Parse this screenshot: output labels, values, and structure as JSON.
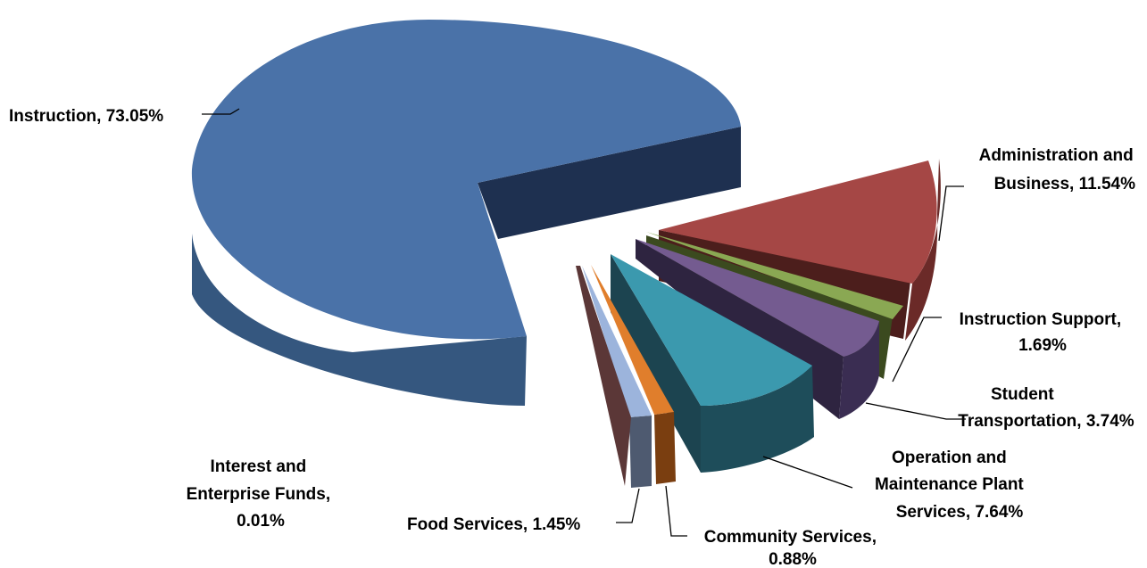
{
  "chart_data": {
    "type": "pie",
    "style": "3d-exploded",
    "unit": "%",
    "slices": [
      {
        "name": "Instruction",
        "value": 73.05,
        "color": "#4A72A8",
        "label": [
          "Instruction, 73.05%"
        ]
      },
      {
        "name": "Administration and Business",
        "value": 11.54,
        "color": "#A54745",
        "label": [
          "Administration and",
          "Business, 11.54%"
        ]
      },
      {
        "name": "Instruction Support",
        "value": 1.69,
        "color": "#8AA853",
        "label": [
          "Instruction Support,",
          "1.69%"
        ]
      },
      {
        "name": "Student Transportation",
        "value": 3.74,
        "color": "#745B90",
        "label": [
          "Student",
          "Transportation, 3.74%"
        ]
      },
      {
        "name": "Operation and Maintenance Plant Services",
        "value": 7.64,
        "color": "#3B99AE",
        "label": [
          "Operation and",
          "Maintenance Plant",
          "Services, 7.64%"
        ]
      },
      {
        "name": "Community Services",
        "value": 0.88,
        "color": "#E07E2C",
        "label": [
          "Community Services,",
          "0.88%"
        ]
      },
      {
        "name": "Food Services",
        "value": 1.45,
        "color": "#9CB4DC",
        "label": [
          "Food Services, 1.45%"
        ]
      },
      {
        "name": "Interest and Enterprise Funds",
        "value": 0.01,
        "color": "#7E4A4A",
        "label": [
          "Interest and",
          "Enterprise Funds,",
          "0.01%"
        ]
      }
    ],
    "legend": "none"
  }
}
